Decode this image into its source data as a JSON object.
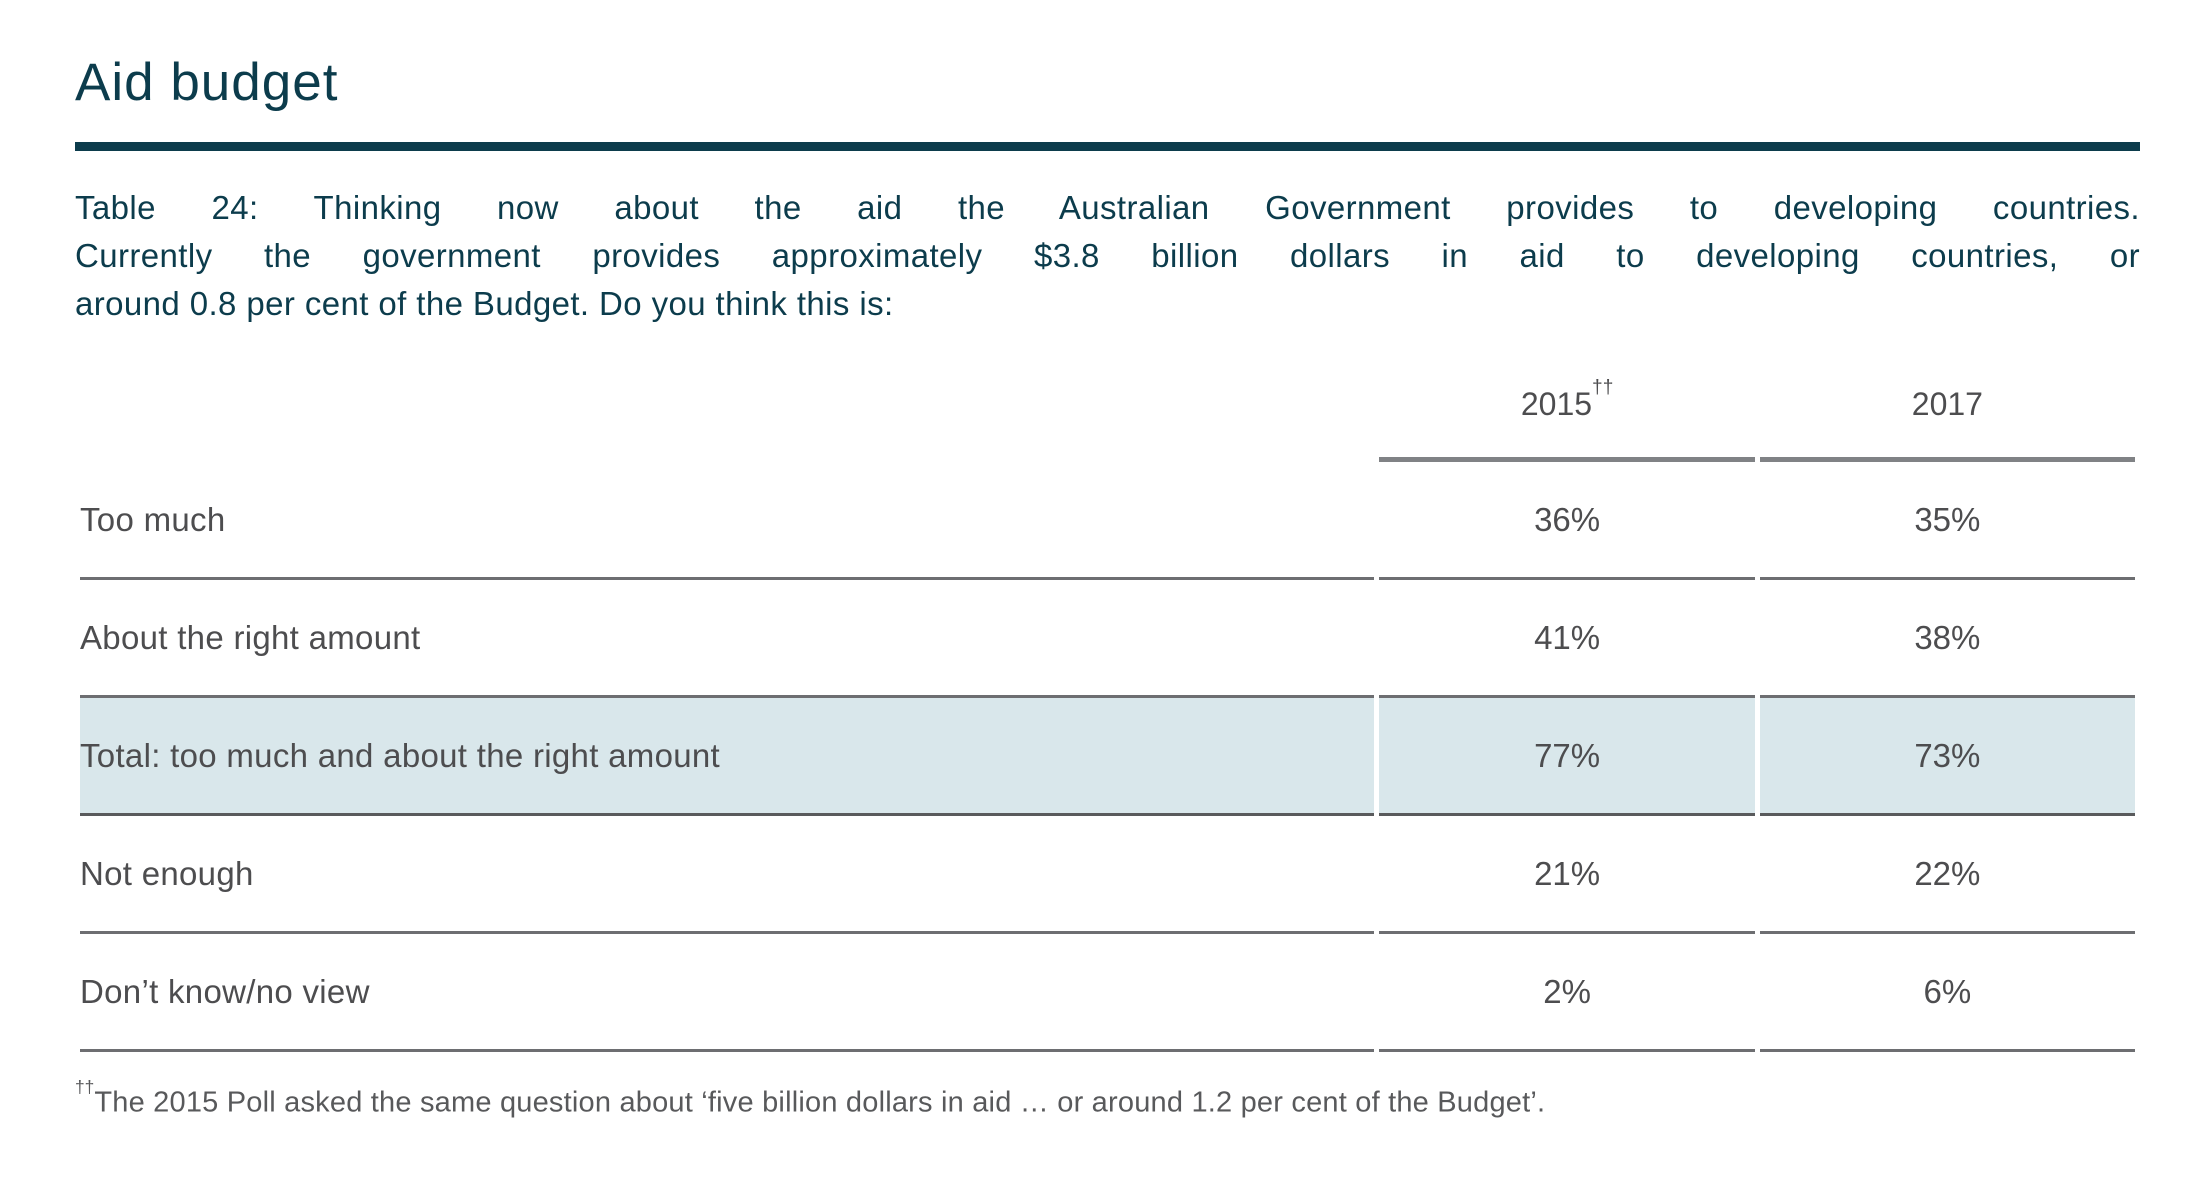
{
  "header": {
    "title": "Aid budget"
  },
  "question": {
    "full_text": "Table 24: Thinking now about the aid the Australian Government provides to developing countries. Currently the government provides approximately $3.8 billion dollars in aid to developing countries, or around 0.8 per cent of the Budget. Do you think this is:",
    "lines": [
      "Table 24: Thinking now about the aid the Australian Government provides to developing countries.",
      "Currently the government provides approximately $3.8 billion dollars in aid to developing countries, or",
      "around 0.8 per cent of the Budget. Do you think this is:"
    ]
  },
  "table": {
    "columns": [
      {
        "label": "2015",
        "sup": "††"
      },
      {
        "label": "2017",
        "sup": ""
      }
    ],
    "rows": [
      {
        "label": "Too much",
        "values": [
          "36%",
          "35%"
        ]
      },
      {
        "label": "About the right amount",
        "values": [
          "41%",
          "38%"
        ]
      },
      {
        "label": "Total: too much and about the right amount",
        "values": [
          "77%",
          "73%"
        ],
        "highlight": true
      },
      {
        "label": "Not enough",
        "values": [
          "21%",
          "22%"
        ]
      },
      {
        "label": "Don’t know/no view",
        "values": [
          "2%",
          "6%"
        ]
      }
    ]
  },
  "footnote": {
    "marker": "††",
    "text": "The 2015 Poll asked the same question about ‘five billion dollars in aid … or around 1.2 per cent of the Budget’."
  },
  "colors": {
    "accent_teal": "#0c3c4c",
    "table_text_gray": "#4d4d4f",
    "divider_gray": "#6d6e71",
    "header_rule_gray": "#808285",
    "highlight_row_bg": "#d9e7eb"
  }
}
